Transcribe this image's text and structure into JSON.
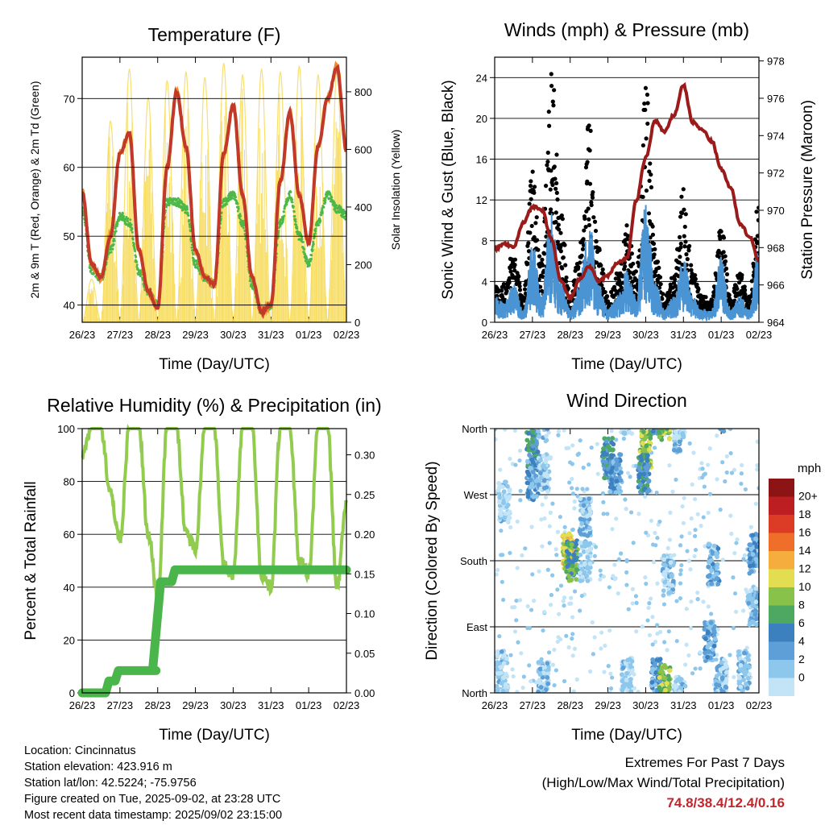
{
  "x_ticks": [
    "26/23",
    "27/23",
    "28/23",
    "29/23",
    "30/23",
    "31/23",
    "01/23",
    "02/23"
  ],
  "x_label": "Time (Day/UTC)",
  "colors": {
    "temp_2m": "#c0392b",
    "temp_9m": "#f08a2a",
    "dewpoint": "#4cb848",
    "insolation": "#f7dc5f",
    "wind": "#4a94d4",
    "gust": "#000000",
    "pressure": "#9b1b1b",
    "rh": "#92cc4f",
    "precip": "#4ab54a"
  },
  "chart_data": [
    {
      "id": "temperature",
      "type": "line",
      "title": "Temperature (F)",
      "xlabel": "Time (Day/UTC)",
      "ylabel": "2m & 9m T (Red, Orange) & 2m Td (Green)",
      "ylabel_right": "Solar Insolation (Yellow)",
      "x": [
        0.0,
        0.25,
        0.5,
        0.75,
        1.0,
        1.25,
        1.5,
        1.75,
        2.0,
        2.25,
        2.5,
        2.75,
        3.0,
        3.25,
        3.5,
        3.75,
        4.0,
        4.25,
        4.5,
        4.75,
        5.0,
        5.25,
        5.5,
        5.75,
        6.0,
        6.25,
        6.5,
        6.75,
        7.0
      ],
      "ylim": [
        37.5,
        76
      ],
      "ylim_right": [
        0,
        920
      ],
      "yticks": [
        40,
        50,
        60,
        70
      ],
      "yticks_right": [
        0,
        200,
        400,
        600,
        800
      ],
      "grid": "horizontal",
      "series": [
        {
          "values": [
            56.5,
            46,
            44,
            50,
            62,
            65,
            48,
            42,
            39.5,
            60,
            71,
            63,
            48,
            44,
            43,
            62,
            69,
            56,
            44,
            39,
            40,
            58,
            68,
            56,
            49,
            63,
            70,
            74.5,
            62.5
          ]
        },
        {
          "values": [
            56.5,
            46,
            44,
            50,
            62,
            65,
            48,
            42,
            39.5,
            60,
            71,
            63,
            48,
            44,
            43,
            62,
            69,
            56,
            44,
            39,
            40,
            58,
            68,
            56,
            49,
            63,
            70,
            74.5,
            62.5
          ]
        },
        {
          "values": [
            54,
            45,
            44,
            48,
            53,
            52,
            45,
            42,
            40,
            55,
            55,
            54,
            46,
            44,
            43,
            55,
            56,
            52,
            43,
            39,
            40,
            52,
            56,
            50,
            46,
            52,
            56,
            54,
            53
          ]
        },
        {
          "values": [
            0,
            150,
            0,
            700,
            0,
            880,
            0,
            780,
            0,
            840,
            0,
            870,
            0,
            850,
            0,
            900,
            0,
            860,
            0,
            880,
            0,
            870,
            0,
            890,
            0,
            860,
            0,
            880,
            0
          ]
        }
      ]
    },
    {
      "id": "winds",
      "type": "line",
      "title": "Winds (mph) & Pressure (mb)",
      "xlabel": "Time (Day/UTC)",
      "ylabel": "Sonic Wind & Gust (Blue, Black)",
      "ylabel_right": "Station Pressure (Maroon)",
      "x": [
        0.0,
        0.25,
        0.5,
        0.75,
        1.0,
        1.25,
        1.5,
        1.75,
        2.0,
        2.25,
        2.5,
        2.75,
        3.0,
        3.25,
        3.5,
        3.75,
        4.0,
        4.25,
        4.5,
        4.75,
        5.0,
        5.25,
        5.5,
        5.75,
        6.0,
        6.25,
        6.5,
        6.75,
        7.0
      ],
      "ylim": [
        0,
        26
      ],
      "ylim_right": [
        964,
        978.2
      ],
      "yticks": [
        0,
        4,
        8,
        12,
        16,
        20,
        24
      ],
      "yticks_right": [
        964,
        966,
        968,
        970,
        972,
        974,
        976,
        978
      ],
      "grid": "horizontal",
      "series": [
        {
          "values": [
            2,
            1.5,
            3,
            1,
            6,
            2,
            9,
            3,
            1,
            3,
            8,
            3,
            1,
            2,
            4,
            2,
            9,
            3,
            1,
            2,
            5,
            2,
            1,
            1,
            5,
            1,
            2,
            1,
            6
          ]
        },
        {
          "values": [
            3,
            3,
            6,
            2,
            12,
            5,
            21,
            9,
            2,
            6,
            16,
            6,
            2,
            4,
            8,
            4,
            20,
            6,
            2,
            4,
            11,
            4,
            2,
            2,
            8,
            2,
            4,
            2,
            10
          ]
        },
        {
          "values": [
            967.9,
            968.2,
            968,
            969.3,
            970.2,
            970,
            968.5,
            966.2,
            965.3,
            966.3,
            967,
            966.2,
            966.5,
            967.2,
            967.4,
            970.5,
            972.8,
            974.8,
            974.2,
            975.1,
            976.7,
            974.7,
            974.3,
            973.7,
            972.2,
            971.2,
            969.3,
            968.6,
            967.3
          ]
        }
      ]
    },
    {
      "id": "humidity",
      "type": "line",
      "title": "Relative Humidity (%) & Precipitation (in)",
      "xlabel": "Time (Day/UTC)",
      "ylabel": "Percent & Total Rainfall",
      "x": [
        0.0,
        0.25,
        0.5,
        0.75,
        1.0,
        1.25,
        1.5,
        1.75,
        2.0,
        2.25,
        2.5,
        2.75,
        3.0,
        3.25,
        3.5,
        3.75,
        4.0,
        4.25,
        4.5,
        4.75,
        5.0,
        5.25,
        5.5,
        5.75,
        6.0,
        6.25,
        6.5,
        6.75,
        7.0
      ],
      "ylim": [
        0,
        100
      ],
      "ylim_right": [
        0,
        0.333
      ],
      "yticks": [
        0,
        20,
        40,
        60,
        80,
        100
      ],
      "yticks_right": [
        "0.00",
        "0.05",
        "0.10",
        "0.15",
        "0.20",
        "0.25",
        "0.30"
      ],
      "grid": "horizontal",
      "series": [
        {
          "values": [
            90,
            100,
            100,
            75,
            58,
            100,
            100,
            60,
            37,
            100,
            100,
            60,
            55,
            100,
            100,
            48,
            45,
            100,
            100,
            45,
            40,
            100,
            100,
            50,
            45,
            100,
            100,
            40,
            72
          ]
        },
        {
          "values": [
            0,
            0,
            0,
            0.015,
            0.028,
            0.028,
            0.028,
            0.028,
            0.028,
            0.14,
            0.155,
            0.155,
            0.155,
            0.155,
            0.155,
            0.155,
            0.155,
            0.155,
            0.155,
            0.155,
            0.155,
            0.155,
            0.155,
            0.155,
            0.155,
            0.155,
            0.155,
            0.155,
            0.155
          ]
        }
      ]
    },
    {
      "id": "direction",
      "type": "scatter",
      "title": "Wind Direction",
      "xlabel": "Time (Day/UTC)",
      "ylabel": "Direction (Colored By Speed)",
      "ylim": [
        0,
        360
      ],
      "yticks": [
        "North",
        "East",
        "South",
        "West",
        "North"
      ],
      "grid": "horizontal",
      "colorbar": {
        "unit": "mph",
        "labels": [
          "0",
          "2",
          "4",
          "6",
          "8",
          "10",
          "12",
          "14",
          "16",
          "18",
          "20+"
        ],
        "colors": [
          "#c2e4f6",
          "#8ec7ec",
          "#5d9fd6",
          "#3d80c0",
          "#4fa862",
          "#88c24b",
          "#e3dd52",
          "#f5ae3d",
          "#ef6f2a",
          "#dc3b26",
          "#bd1e22",
          "#8c1414"
        ]
      },
      "clusters": [
        {
          "x": 0.2,
          "dir": 30,
          "speed": 1
        },
        {
          "x": 0.25,
          "dir": 260,
          "speed": 1
        },
        {
          "x": 1.0,
          "dir": 330,
          "speed": 6
        },
        {
          "x": 1.0,
          "dir": 290,
          "speed": 4
        },
        {
          "x": 1.3,
          "dir": 300,
          "speed": 2
        },
        {
          "x": 1.3,
          "dir": 15,
          "speed": 2
        },
        {
          "x": 1.95,
          "dir": 190,
          "speed": 12
        },
        {
          "x": 2.05,
          "dir": 180,
          "speed": 8
        },
        {
          "x": 2.4,
          "dir": 240,
          "speed": 2
        },
        {
          "x": 2.4,
          "dir": 180,
          "speed": 1
        },
        {
          "x": 3.0,
          "dir": 320,
          "speed": 6
        },
        {
          "x": 3.2,
          "dir": 300,
          "speed": 4
        },
        {
          "x": 3.5,
          "dir": 20,
          "speed": 1
        },
        {
          "x": 4.0,
          "dir": 330,
          "speed": 10
        },
        {
          "x": 3.95,
          "dir": 300,
          "speed": 6
        },
        {
          "x": 4.3,
          "dir": 20,
          "speed": 4
        },
        {
          "x": 4.5,
          "dir": 12,
          "speed": 10
        },
        {
          "x": 4.6,
          "dir": 160,
          "speed": 2
        },
        {
          "x": 4.9,
          "dir": 355,
          "speed": 2
        },
        {
          "x": 5.7,
          "dir": 70,
          "speed": 4
        },
        {
          "x": 5.8,
          "dir": 175,
          "speed": 3
        },
        {
          "x": 6.0,
          "dir": 20,
          "speed": 2
        },
        {
          "x": 6.6,
          "dir": 30,
          "speed": 2
        },
        {
          "x": 6.9,
          "dir": 190,
          "speed": 4
        },
        {
          "x": 6.85,
          "dir": 120,
          "speed": 3
        }
      ]
    }
  ],
  "info": {
    "location": "Location: Cincinnatus",
    "elevation": "Station elevation: 423.916 m",
    "latlon": "Station lat/lon: 42.5224; -75.9756",
    "created": "Figure created on Tue, 2025-09-02, at 23:28 UTC",
    "recent": "Most recent data timestamp: 2025/09/02 23:15:00"
  },
  "extremes": {
    "title": "Extremes For Past 7 Days",
    "subtitle": "(High/Low/Max Wind/Total Precipitation)",
    "values": "74.8/38.4/12.4/0.16"
  }
}
